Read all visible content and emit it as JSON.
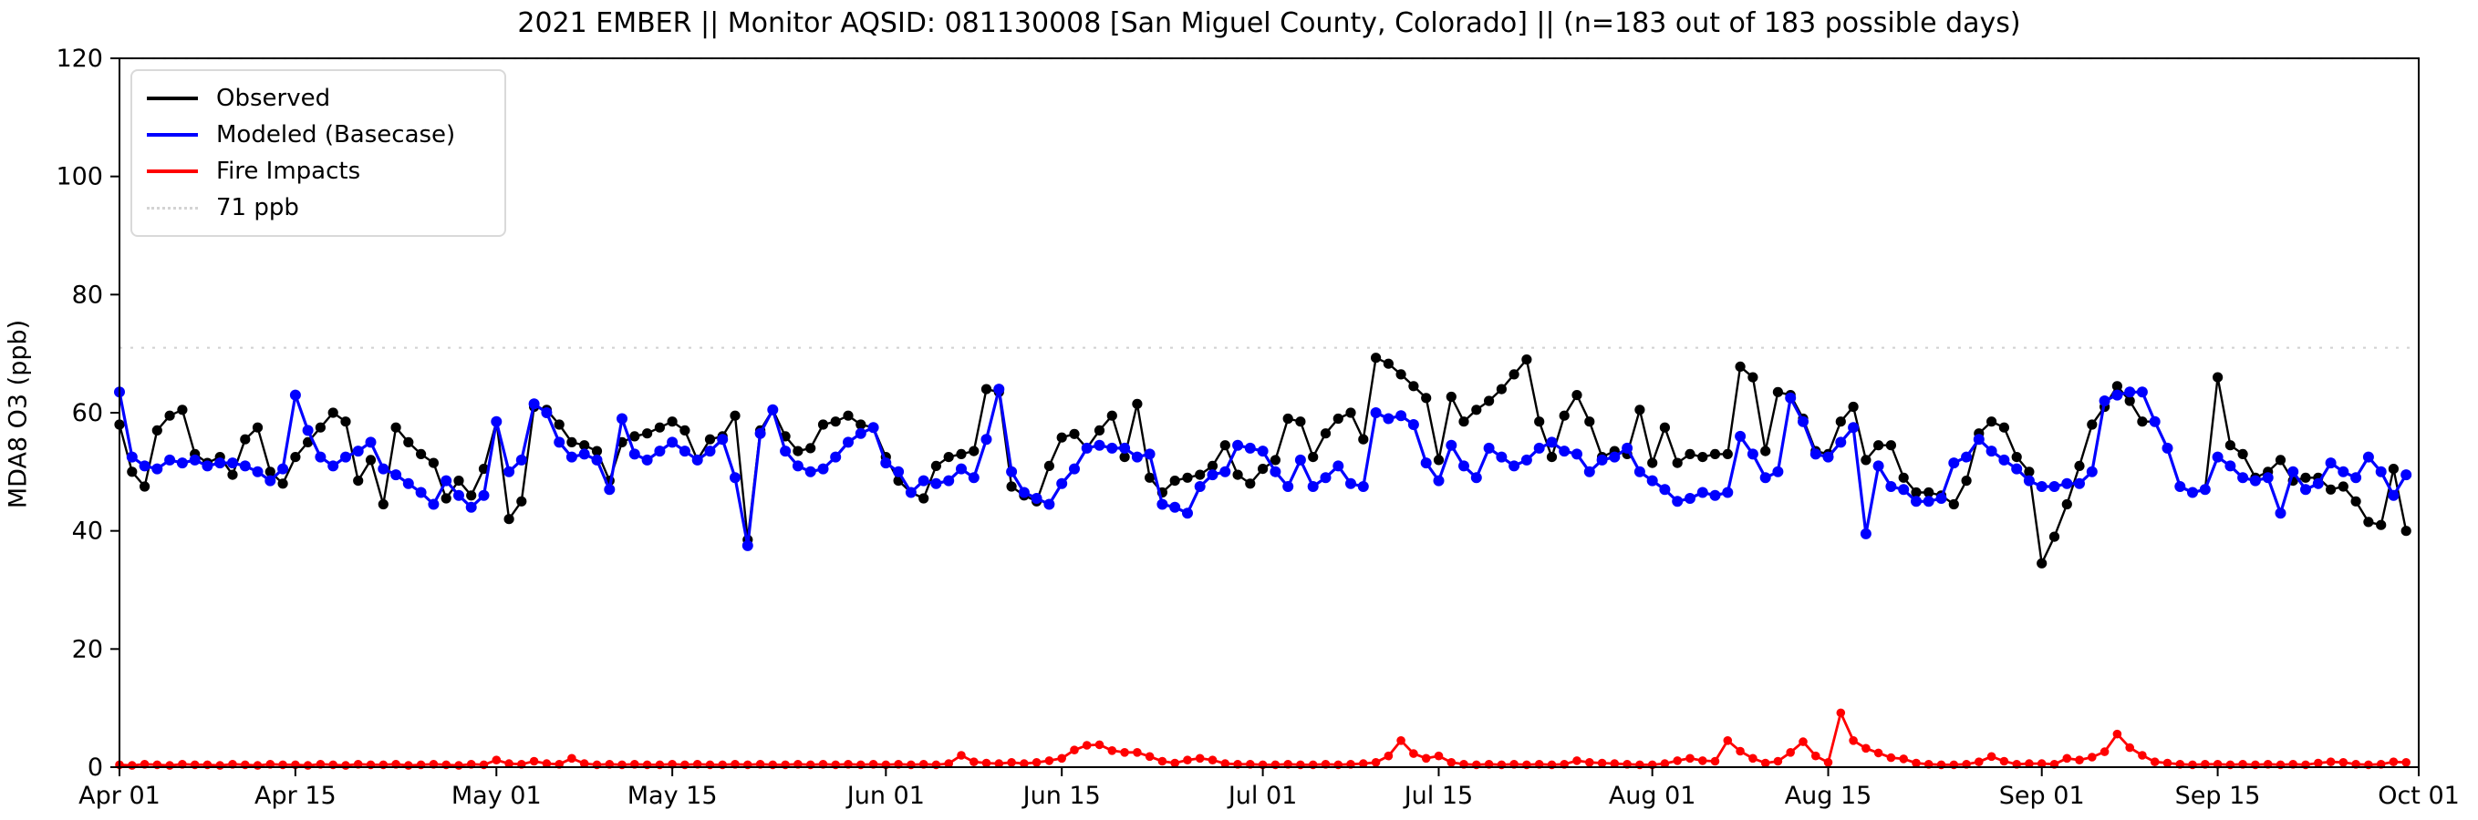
{
  "title": "2021 EMBER || Monitor AQSID: 081130008 [San Miguel County, Colorado] || (n=183 out of 183 possible days)",
  "legend": {
    "observed_label": "Observed",
    "modeled_label": "Modeled (Basecase)",
    "fire_label": "Fire Impacts",
    "threshold_label": "71 ppb"
  },
  "colors": {
    "observed": "#000000",
    "modeled": "#0000ff",
    "fire": "#ff0000",
    "threshold": "#d3d3d3"
  },
  "chart_data": {
    "type": "line",
    "title": "2021 EMBER || Monitor AQSID: 081130008 [San Miguel County, Colorado] || (n=183 out of 183 possible days)",
    "xlabel": "",
    "ylabel": "MDA8 O3 (ppb)",
    "ylim": [
      0,
      120
    ],
    "y_ticks": [
      0,
      20,
      40,
      60,
      80,
      100,
      120
    ],
    "x_start": "Apr 01",
    "x_end": "Oct 01",
    "n_days": 183,
    "x_ticks": [
      {
        "day": 0,
        "label": "Apr 01"
      },
      {
        "day": 14,
        "label": "Apr 15"
      },
      {
        "day": 30,
        "label": "May 01"
      },
      {
        "day": 44,
        "label": "May 15"
      },
      {
        "day": 61,
        "label": "Jun 01"
      },
      {
        "day": 75,
        "label": "Jun 15"
      },
      {
        "day": 91,
        "label": "Jul 01"
      },
      {
        "day": 105,
        "label": "Jul 15"
      },
      {
        "day": 122,
        "label": "Aug 01"
      },
      {
        "day": 136,
        "label": "Aug 15"
      },
      {
        "day": 153,
        "label": "Sep 01"
      },
      {
        "day": 167,
        "label": "Sep 15"
      },
      {
        "day": 183,
        "label": "Oct 01"
      }
    ],
    "reference_lines": [
      {
        "value": 71,
        "label": "71 ppb",
        "style": "dotted",
        "color": "#d3d3d3"
      },
      {
        "value": 120,
        "label": "",
        "style": "dotted",
        "color": "#d3d3d3"
      }
    ],
    "legend_position": "upper left",
    "grid": false,
    "series": [
      {
        "name": "Observed",
        "color": "#000000",
        "values": [
          58,
          50,
          47.5,
          57,
          59.5,
          60.5,
          53,
          51.5,
          52.5,
          49.5,
          55.5,
          57.5,
          50,
          48,
          52.5,
          55,
          57.5,
          60,
          58.5,
          48.5,
          52,
          44.5,
          57.5,
          55,
          53,
          51.5,
          45.5,
          48.5,
          46,
          50.5,
          58.5,
          42,
          45,
          61,
          60.5,
          58,
          55,
          54.5,
          53.5,
          48.5,
          55,
          56,
          56.5,
          57.5,
          58.5,
          57,
          52,
          55.5,
          56,
          59.5,
          38.5,
          57,
          60.5,
          56,
          53.5,
          54,
          58,
          58.5,
          59.5,
          58,
          57.5,
          52.5,
          48.5,
          46.5,
          45.5,
          51,
          52.5,
          53,
          53.5,
          64,
          63.5,
          47.5,
          46,
          45,
          51,
          55.8,
          56.4,
          54,
          57,
          59.5,
          52.5,
          61.5,
          49,
          46.5,
          48.5,
          49,
          49.5,
          51,
          54.5,
          49.5,
          48,
          50.5,
          52,
          59,
          58.5,
          52.5,
          56.5,
          59,
          60,
          55.5,
          69.3,
          68.3,
          66.5,
          64.5,
          62.5,
          52,
          62.7,
          58.5,
          60.5,
          62,
          64,
          66.5,
          69,
          58.5,
          52.5,
          59.5,
          63,
          58.5,
          52.5,
          53.5,
          53,
          60.5,
          51.5,
          57.5,
          51.5,
          53,
          52.5,
          53,
          53,
          67.8,
          66,
          53.5,
          63.5,
          63,
          59,
          53.5,
          53,
          58.5,
          61,
          52,
          54.5,
          54.5,
          49,
          46.5,
          46.5,
          46,
          44.5,
          48.5,
          56.5,
          58.5,
          57.5,
          52.5,
          50,
          34.5,
          39,
          44.5,
          51,
          58,
          61,
          64.5,
          62,
          58.5,
          58.5,
          54,
          47.5,
          46.5,
          47,
          66,
          54.5,
          53,
          49,
          50,
          52,
          48.5,
          49,
          49,
          47,
          47.5,
          45,
          41.5,
          41,
          50.5,
          40
        ]
      },
      {
        "name": "Modeled (Basecase)",
        "color": "#0000ff",
        "values": [
          63.5,
          52.5,
          51,
          50.5,
          52,
          51.5,
          52,
          51,
          51.5,
          51.5,
          51,
          50,
          48.5,
          50.5,
          63,
          57,
          52.5,
          51,
          52.5,
          53.5,
          55,
          50.5,
          49.5,
          48,
          46.5,
          44.5,
          48.5,
          46,
          44,
          46,
          58.5,
          50,
          52,
          61.5,
          60,
          55,
          52.5,
          53,
          52,
          47,
          59,
          53,
          52,
          53.5,
          55,
          53.5,
          52,
          53.5,
          55.5,
          49,
          37.5,
          56.5,
          60.5,
          53.5,
          51,
          50,
          50.5,
          52.5,
          55,
          56.5,
          57.5,
          51.5,
          50,
          46.5,
          48.5,
          48,
          48.5,
          50.5,
          49,
          55.5,
          64,
          50,
          46.5,
          45.5,
          44.5,
          48,
          50.5,
          54,
          54.5,
          54,
          54,
          52.5,
          53,
          44.5,
          44,
          43,
          47.5,
          49.5,
          50,
          54.5,
          54,
          53.5,
          50,
          47.5,
          52,
          47.5,
          49,
          51,
          48,
          47.5,
          60,
          59,
          59.5,
          58,
          51.5,
          48.5,
          54.5,
          51,
          49,
          54,
          52.5,
          51,
          52,
          54,
          55,
          53.5,
          53,
          50,
          52,
          52.5,
          54,
          50,
          48.5,
          47,
          45,
          45.5,
          46.5,
          46,
          46.5,
          56,
          53,
          49,
          50,
          62.5,
          58.5,
          53,
          52.5,
          55,
          57.5,
          39.5,
          51,
          47.5,
          47,
          45,
          45,
          45.5,
          51.5,
          52.5,
          55.5,
          53.5,
          52,
          50.5,
          48.5,
          47.5,
          47.5,
          48,
          48,
          50,
          62,
          63,
          63.5,
          63.5,
          58.5,
          54,
          47.5,
          46.5,
          47,
          52.5,
          51,
          49,
          48.5,
          49,
          43,
          50,
          47,
          48,
          51.5,
          50,
          49,
          52.5,
          50,
          46,
          49.5
        ]
      },
      {
        "name": "Fire Impacts",
        "color": "#ff0000",
        "values": [
          0.4,
          0.3,
          0.5,
          0.4,
          0.3,
          0.5,
          0.4,
          0.4,
          0.3,
          0.5,
          0.4,
          0.3,
          0.5,
          0.4,
          0.4,
          0.3,
          0.5,
          0.4,
          0.3,
          0.5,
          0.4,
          0.4,
          0.5,
          0.3,
          0.4,
          0.5,
          0.4,
          0.3,
          0.5,
          0.4,
          1.2,
          0.6,
          0.5,
          1.0,
          0.6,
          0.5,
          1.5,
          0.6,
          0.4,
          0.5,
          0.4,
          0.5,
          0.4,
          0.4,
          0.5,
          0.4,
          0.5,
          0.4,
          0.4,
          0.5,
          0.4,
          0.5,
          0.4,
          0.4,
          0.5,
          0.4,
          0.5,
          0.4,
          0.5,
          0.4,
          0.5,
          0.4,
          0.5,
          0.4,
          0.5,
          0.4,
          0.6,
          2.0,
          0.9,
          0.7,
          0.6,
          0.8,
          0.6,
          0.8,
          1.1,
          1.5,
          2.9,
          3.7,
          3.8,
          2.8,
          2.5,
          2.5,
          1.8,
          1.0,
          0.7,
          1.2,
          1.5,
          1.2,
          0.6,
          0.5,
          0.5,
          0.4,
          0.4,
          0.5,
          0.4,
          0.4,
          0.5,
          0.4,
          0.5,
          0.6,
          0.8,
          1.9,
          4.5,
          2.3,
          1.5,
          1.9,
          0.8,
          0.5,
          0.4,
          0.5,
          0.4,
          0.5,
          0.4,
          0.5,
          0.4,
          0.5,
          1.1,
          0.8,
          0.7,
          0.6,
          0.5,
          0.4,
          0.4,
          0.6,
          1.1,
          1.5,
          1.1,
          1.0,
          4.5,
          2.7,
          1.5,
          0.7,
          1.0,
          2.5,
          4.3,
          1.9,
          0.8,
          9.2,
          4.5,
          3.2,
          2.4,
          1.6,
          1.4,
          0.7,
          0.5,
          0.4,
          0.4,
          0.5,
          0.9,
          1.8,
          1.0,
          0.5,
          0.6,
          0.6,
          0.5,
          1.5,
          1.2,
          1.7,
          2.6,
          5.6,
          3.3,
          2.0,
          0.9,
          0.7,
          0.5,
          0.4,
          0.5,
          0.5,
          0.4,
          0.5,
          0.4,
          0.5,
          0.4,
          0.5,
          0.4,
          0.7,
          0.9,
          0.8,
          0.5,
          0.4,
          0.5,
          0.9,
          0.8
        ]
      }
    ]
  }
}
